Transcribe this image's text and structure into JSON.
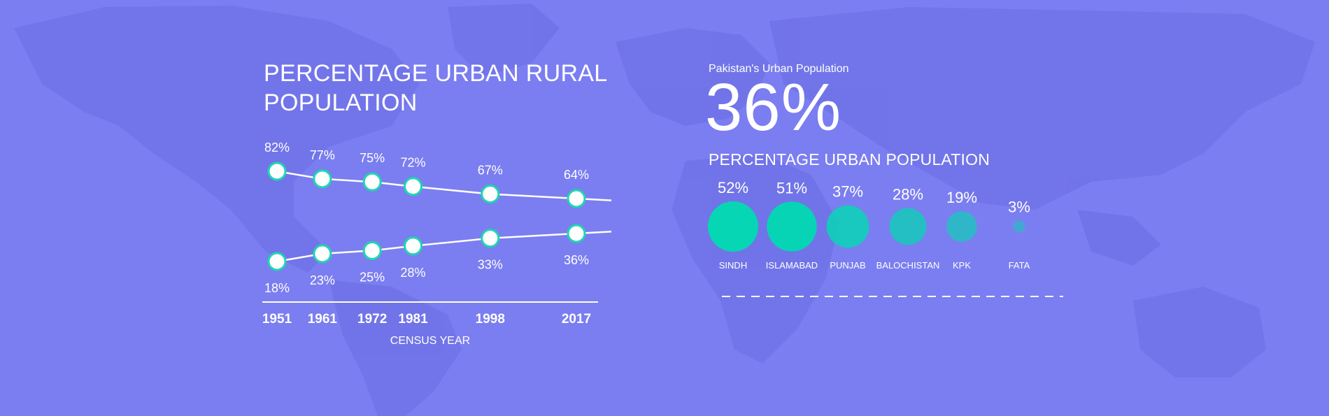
{
  "colors": {
    "background": "#7b7ef0",
    "map_land": "#7073e6",
    "line": "#ffffff",
    "point_fill": "#ffffff",
    "point_stroke": "#1fd6b0",
    "bubble_teal": "#06d6b4"
  },
  "left_panel": {
    "title": "PERCENTAGE URBAN RURAL POPULATION",
    "xlabel": "CENSUS YEAR"
  },
  "right_panel": {
    "subtitle": "Pakistan's Urban Population",
    "big_value": "36%",
    "heading": "PERCENTAGE URBAN POPULATION"
  },
  "chart_data": [
    {
      "type": "line",
      "title": "PERCENTAGE URBAN RURAL POPULATION",
      "xlabel": "CENSUS YEAR",
      "ylabel": "",
      "x": [
        1951,
        1961,
        1972,
        1981,
        1998,
        2017
      ],
      "series": [
        {
          "values": [
            82,
            77,
            75,
            72,
            67,
            64
          ],
          "labels": [
            "82%",
            "77%",
            "75%",
            "72%",
            "67%",
            "64%"
          ]
        },
        {
          "values": [
            18,
            23,
            25,
            28,
            33,
            36
          ],
          "labels": [
            "18%",
            "23%",
            "25%",
            "28%",
            "33%",
            "36%"
          ]
        }
      ],
      "grid": false
    },
    {
      "type": "scatter",
      "title": "PERCENTAGE URBAN POPULATION",
      "categories": [
        "SINDH",
        "ISLAMABAD",
        "PUNJAB",
        "BALOCHISTAN",
        "KPK",
        "FATA"
      ],
      "values": [
        52,
        51,
        37,
        28,
        19,
        3
      ],
      "labels": [
        "52%",
        "51%",
        "37%",
        "28%",
        "19%",
        "3%"
      ]
    }
  ]
}
